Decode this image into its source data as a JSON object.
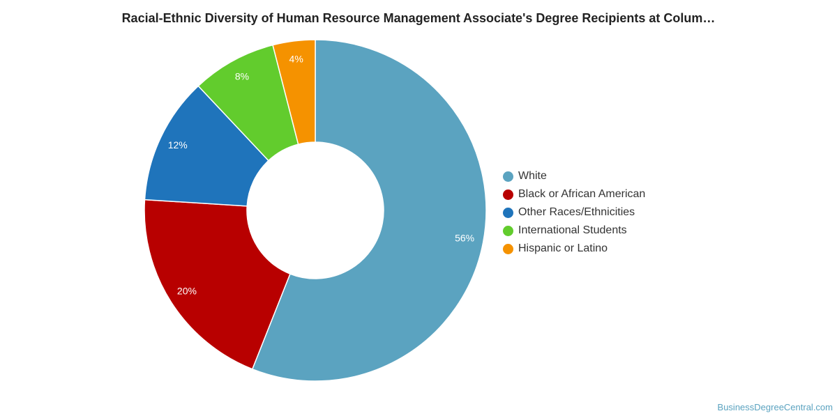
{
  "chart_data": {
    "type": "pie",
    "variant": "donut",
    "title": "Racial-Ethnic Diversity of Human Resource Management Associate's Degree Recipients at Colum…",
    "legend_position": "right",
    "slices": [
      {
        "label": "White",
        "value": 56,
        "display": "56%",
        "color": "#5ba3c0"
      },
      {
        "label": "Black or African American",
        "value": 20,
        "display": "20%",
        "color": "#b80000"
      },
      {
        "label": "Other Races/Ethnicities",
        "value": 12,
        "display": "12%",
        "color": "#1f74bb"
      },
      {
        "label": "International Students",
        "value": 8,
        "display": "8%",
        "color": "#62cc2d"
      },
      {
        "label": "Hispanic or Latino",
        "value": 4,
        "display": "4%",
        "color": "#f59200"
      }
    ]
  },
  "watermark": "BusinessDegreeCentral.com"
}
